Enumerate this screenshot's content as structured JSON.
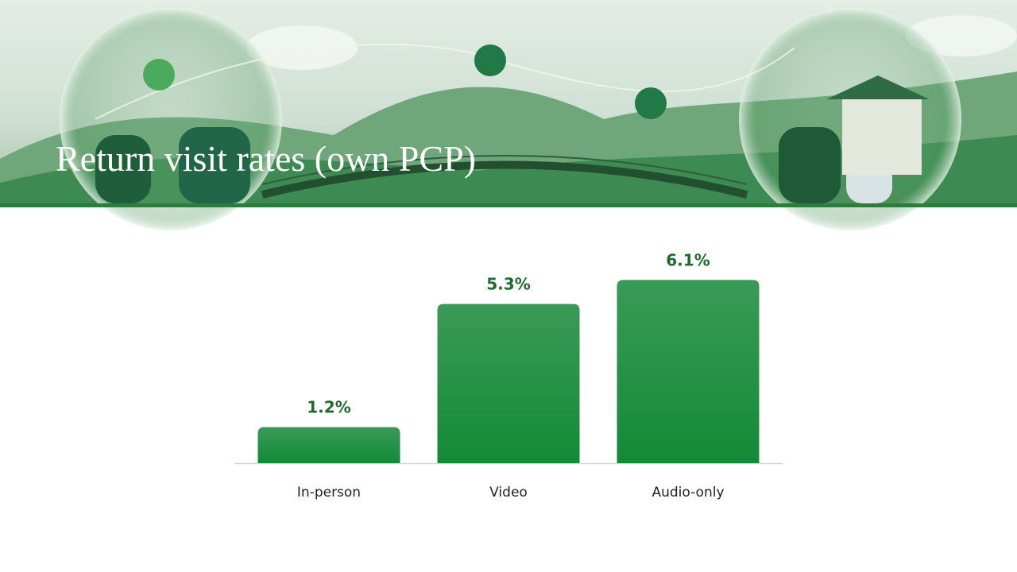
{
  "chart_data": {
    "type": "bar",
    "title": "Return visit rates (own PCP)",
    "categories": [
      "In-person",
      "Video",
      "Audio-only"
    ],
    "values": [
      1.2,
      5.3,
      6.1
    ],
    "value_labels": [
      "1.2%",
      "5.3%",
      "6.1%"
    ],
    "color": "#1a8c3c"
  }
}
